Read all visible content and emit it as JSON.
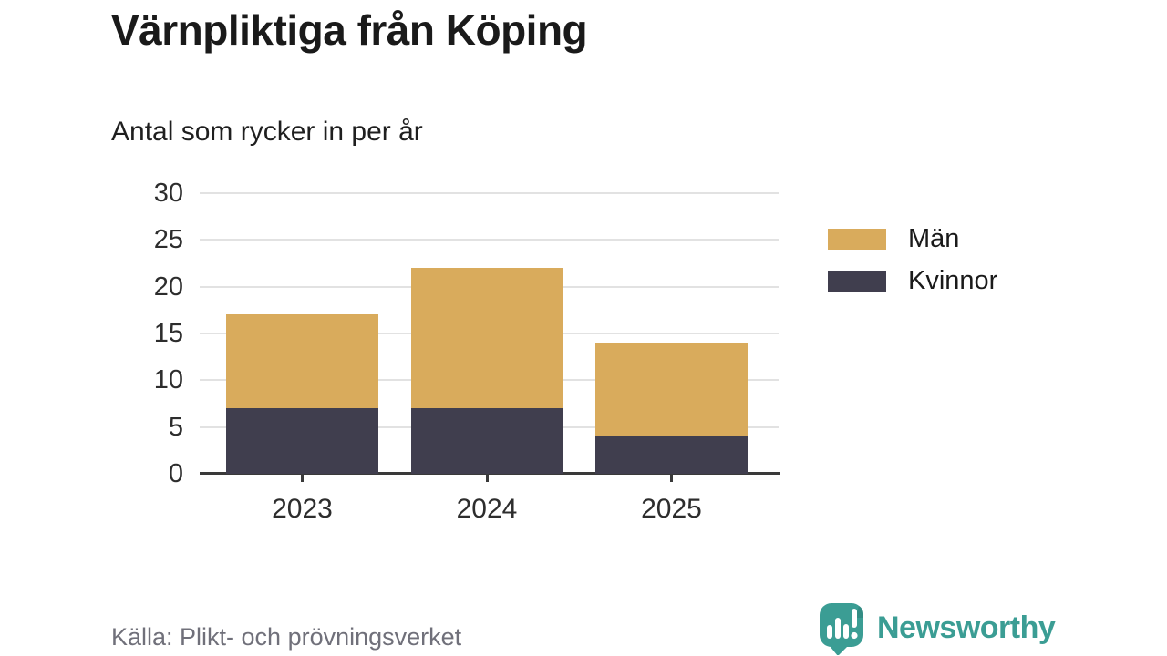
{
  "header": {
    "title": "Värnpliktiga från Köping",
    "subtitle": "Antal som rycker in per år"
  },
  "chart_data": {
    "type": "bar",
    "stacked": true,
    "title": "Värnpliktiga från Köping",
    "subtitle": "Antal som rycker in per år",
    "xlabel": "",
    "ylabel": "",
    "categories": [
      "2023",
      "2024",
      "2025"
    ],
    "series": [
      {
        "name": "Kvinnor",
        "color": "#403e4e",
        "values": [
          7,
          7,
          4
        ]
      },
      {
        "name": "Män",
        "color": "#d9ab5c",
        "values": [
          10,
          15,
          10
        ]
      }
    ],
    "stack_totals": [
      17,
      22,
      14
    ],
    "ylim": [
      0,
      30
    ],
    "yticks": [
      0,
      5,
      10,
      15,
      20,
      25,
      30
    ],
    "grid": true,
    "legend_position": "right",
    "legend_order": [
      "Män",
      "Kvinnor"
    ]
  },
  "footer": {
    "source": "Källa: Plikt- och prövningsverket",
    "brand": "Newsworthy"
  },
  "colors": {
    "men_gold": "#d9ab5c",
    "women_slate": "#403e4e",
    "brand_teal": "#3b9d94",
    "gridline": "#e2e2e2",
    "axis": "#3a3a3a"
  }
}
